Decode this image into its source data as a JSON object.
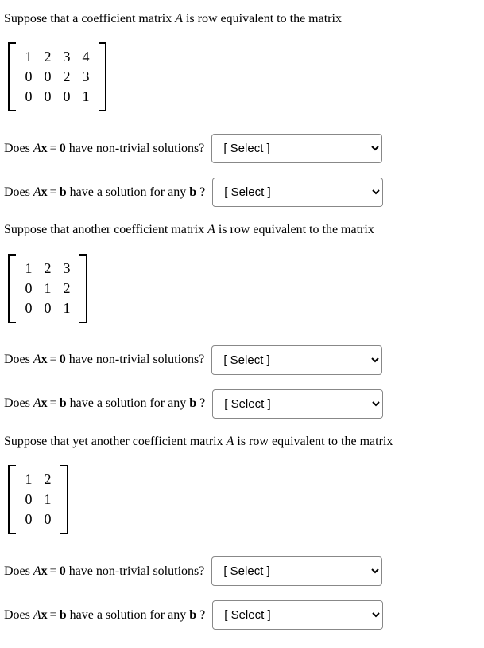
{
  "intro1": {
    "part1": "Suppose that a coefficient matrix ",
    "var": "A",
    "part2": " is row equivalent to the matrix"
  },
  "matrix1": {
    "rows": [
      [
        "1",
        "2",
        "3",
        "4"
      ],
      [
        "0",
        "0",
        "2",
        "3"
      ],
      [
        "0",
        "0",
        "0",
        "1"
      ]
    ]
  },
  "q1": {
    "does": "Does ",
    "varA": "A",
    "varX": "x",
    "eq": "=",
    "rhs": "0",
    "tail": " have non-trivial solutions? ",
    "select_placeholder": "[ Select ]"
  },
  "q2": {
    "does": "Does ",
    "varA": "A",
    "varX": "x",
    "eq": "=",
    "rhs": "b",
    "tail1": " have a solution for any ",
    "tailVar": "b",
    "tail2": " ? ",
    "select_placeholder": "[ Select ]"
  },
  "intro2": {
    "part1": "Suppose that another coefficient matrix ",
    "var": "A",
    "part2": " is row equivalent to the matrix"
  },
  "matrix2": {
    "rows": [
      [
        "1",
        "2",
        "3"
      ],
      [
        "0",
        "1",
        "2"
      ],
      [
        "0",
        "0",
        "1"
      ]
    ]
  },
  "q3": {
    "does": "Does ",
    "varA": "A",
    "varX": "x",
    "eq": "=",
    "rhs": "0",
    "tail": " have non-trivial solutions? ",
    "select_placeholder": "[ Select ]"
  },
  "q4": {
    "does": "Does ",
    "varA": "A",
    "varX": "x",
    "eq": "=",
    "rhs": "b",
    "tail1": " have a solution for any ",
    "tailVar": "b",
    "tail2": " ? ",
    "select_placeholder": "[ Select ]"
  },
  "intro3": {
    "part1": "Suppose that yet another coefficient matrix ",
    "var": "A",
    "part2": " is row equivalent to the matrix"
  },
  "matrix3": {
    "rows": [
      [
        "1",
        "2"
      ],
      [
        "0",
        "1"
      ],
      [
        "0",
        "0"
      ]
    ]
  },
  "q5": {
    "does": "Does ",
    "varA": "A",
    "varX": "x",
    "eq": "=",
    "rhs": "0",
    "tail": " have non-trivial solutions? ",
    "select_placeholder": "[ Select ]"
  },
  "q6": {
    "does": "Does ",
    "varA": "A",
    "varX": "x",
    "eq": "=",
    "rhs": "b",
    "tail1": " have a solution for any ",
    "tailVar": "b",
    "tail2": " ? ",
    "select_placeholder": "[ Select ]"
  }
}
